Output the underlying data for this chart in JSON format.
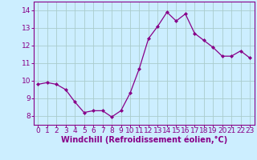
{
  "x": [
    0,
    1,
    2,
    3,
    4,
    5,
    6,
    7,
    8,
    9,
    10,
    11,
    12,
    13,
    14,
    15,
    16,
    17,
    18,
    19,
    20,
    21,
    22,
    23
  ],
  "y": [
    9.8,
    9.9,
    9.8,
    9.5,
    8.8,
    8.2,
    8.3,
    8.3,
    7.95,
    8.3,
    9.3,
    10.7,
    12.4,
    13.1,
    13.9,
    13.4,
    13.8,
    12.7,
    12.3,
    11.9,
    11.4,
    11.4,
    11.7,
    11.3
  ],
  "line_color": "#880088",
  "marker": "D",
  "marker_size": 2.0,
  "bg_color": "#cceeff",
  "grid_color": "#aacccc",
  "xlabel": "Windchill (Refroidissement éolien,°C)",
  "xlabel_color": "#880088",
  "tick_color": "#880088",
  "spine_color": "#880088",
  "ylim": [
    7.5,
    14.5
  ],
  "xlim": [
    -0.5,
    23.5
  ],
  "yticks": [
    8,
    9,
    10,
    11,
    12,
    13,
    14
  ],
  "xticks": [
    0,
    1,
    2,
    3,
    4,
    5,
    6,
    7,
    8,
    9,
    10,
    11,
    12,
    13,
    14,
    15,
    16,
    17,
    18,
    19,
    20,
    21,
    22,
    23
  ],
  "tick_fontsize": 6.5,
  "xlabel_fontsize": 7.0
}
